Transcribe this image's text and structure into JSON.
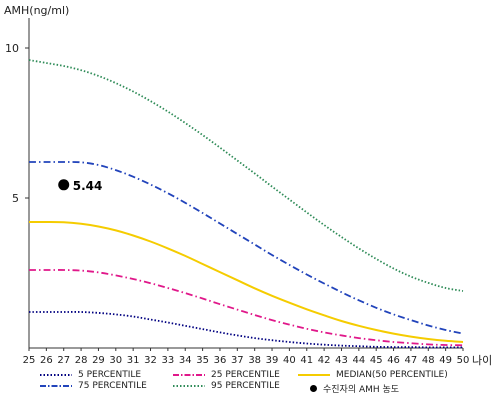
{
  "chart_data": {
    "type": "line",
    "ylabel": "AMH(ng/ml)",
    "xunit": "나이",
    "xlim": [
      25,
      50
    ],
    "ylim": [
      0,
      11
    ],
    "yticks": [
      5,
      10
    ],
    "x": [
      25,
      26,
      27,
      28,
      29,
      30,
      31,
      32,
      33,
      34,
      35,
      36,
      37,
      38,
      39,
      40,
      41,
      42,
      43,
      44,
      45,
      46,
      47,
      48,
      49,
      50
    ],
    "series": [
      {
        "name": "5 PERCENTILE",
        "color": "#000080",
        "dash": "dot",
        "values": [
          1.2,
          1.2,
          1.2,
          1.2,
          1.17,
          1.12,
          1.05,
          0.95,
          0.85,
          0.74,
          0.63,
          0.52,
          0.42,
          0.33,
          0.26,
          0.2,
          0.15,
          0.11,
          0.08,
          0.06,
          0.04,
          0.03,
          0.03,
          0.02,
          0.02,
          0.02
        ]
      },
      {
        "name": "25 PERCENTILE",
        "color": "#e0188a",
        "dash": "dashdot",
        "values": [
          2.6,
          2.6,
          2.6,
          2.58,
          2.52,
          2.42,
          2.3,
          2.16,
          2.0,
          1.83,
          1.65,
          1.46,
          1.28,
          1.1,
          0.93,
          0.78,
          0.64,
          0.52,
          0.42,
          0.33,
          0.26,
          0.2,
          0.16,
          0.12,
          0.1,
          0.09
        ]
      },
      {
        "name": "MEDIAN(50 PERCENTILE)",
        "color": "#f5cc00",
        "dash": "solid",
        "values": [
          4.2,
          4.2,
          4.19,
          4.14,
          4.05,
          3.92,
          3.75,
          3.55,
          3.32,
          3.07,
          2.8,
          2.53,
          2.26,
          1.99,
          1.74,
          1.51,
          1.29,
          1.09,
          0.9,
          0.74,
          0.6,
          0.48,
          0.38,
          0.3,
          0.24,
          0.2
        ]
      },
      {
        "name": "75 PERCENTILE",
        "color": "#2244bb",
        "dash": "dashdot",
        "values": [
          6.2,
          6.2,
          6.2,
          6.19,
          6.1,
          5.93,
          5.71,
          5.45,
          5.16,
          4.84,
          4.5,
          4.15,
          3.8,
          3.45,
          3.1,
          2.77,
          2.45,
          2.15,
          1.86,
          1.59,
          1.34,
          1.12,
          0.93,
          0.75,
          0.6,
          0.48
        ]
      },
      {
        "name": "95 PERCENTILE",
        "color": "#2e8b57",
        "dash": "dot",
        "values": [
          9.6,
          9.5,
          9.4,
          9.26,
          9.07,
          8.83,
          8.55,
          8.23,
          7.88,
          7.5,
          7.1,
          6.68,
          6.25,
          5.82,
          5.38,
          4.95,
          4.52,
          4.1,
          3.7,
          3.32,
          2.97,
          2.65,
          2.38,
          2.17,
          2.0,
          1.9
        ]
      }
    ],
    "point": {
      "label": "수진자의 AMH 농도",
      "x": 27,
      "y": 5.44,
      "text": "5.44"
    }
  },
  "legend": {
    "p5": "5 PERCENTILE",
    "p75": "75 PERCENTILE",
    "p25": "25 PERCENTILE",
    "p95": "95 PERCENTILE",
    "median": "MEDIAN(50 PERCENTILE)",
    "point": "수진자의 AMH 농도"
  }
}
